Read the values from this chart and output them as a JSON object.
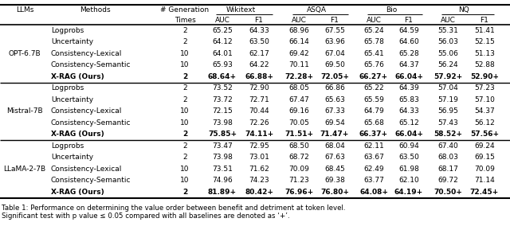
{
  "title": "Table 1: Performance on determining the value order between benefit and detriment at token level.",
  "subtitle": "Significant test with p value ≤ 0.05 compared with all baselines are denoted as ‘+’.",
  "groups": [
    {
      "llm": "OPT-6.7B",
      "rows": [
        {
          "method": "Logprobs",
          "times": "2",
          "vals": [
            "65.25",
            "64.33",
            "68.96",
            "67.55",
            "65.24",
            "64.59",
            "55.31",
            "51.41"
          ],
          "bold": false
        },
        {
          "method": "Uncertainty",
          "times": "2",
          "vals": [
            "64.12",
            "63.50",
            "66.14",
            "63.96",
            "65.78",
            "64.60",
            "56.03",
            "52.15"
          ],
          "bold": false
        },
        {
          "method": "Consistency-Lexical",
          "times": "10",
          "vals": [
            "64.01",
            "62.17",
            "69.42",
            "67.04",
            "65.41",
            "65.28",
            "55.06",
            "51.13"
          ],
          "bold": false
        },
        {
          "method": "Consistency-Semantic",
          "times": "10",
          "vals": [
            "65.93",
            "64.22",
            "70.11",
            "69.50",
            "65.76",
            "64.37",
            "56.24",
            "52.88"
          ],
          "bold": false
        },
        {
          "method": "X-RAG (Ours)",
          "times": "2",
          "vals": [
            "68.64+",
            "66.88+",
            "72.28+",
            "72.05+",
            "66.27+",
            "66.04+",
            "57.92+",
            "52.90+"
          ],
          "bold": true
        }
      ]
    },
    {
      "llm": "Mistral-7B",
      "rows": [
        {
          "method": "Logprobs",
          "times": "2",
          "vals": [
            "73.52",
            "72.90",
            "68.05",
            "66.86",
            "65.22",
            "64.39",
            "57.04",
            "57.23"
          ],
          "bold": false
        },
        {
          "method": "Uncertainty",
          "times": "2",
          "vals": [
            "73.72",
            "72.71",
            "67.47",
            "65.63",
            "65.59",
            "65.83",
            "57.19",
            "57.10"
          ],
          "bold": false
        },
        {
          "method": "Consistency-Lexical",
          "times": "10",
          "vals": [
            "72.15",
            "70.44",
            "69.16",
            "67.33",
            "64.79",
            "64.33",
            "56.95",
            "54.37"
          ],
          "bold": false
        },
        {
          "method": "Consistency-Semantic",
          "times": "10",
          "vals": [
            "73.98",
            "72.26",
            "70.05",
            "69.54",
            "65.68",
            "65.12",
            "57.43",
            "56.12"
          ],
          "bold": false
        },
        {
          "method": "X-RAG (Ours)",
          "times": "2",
          "vals": [
            "75.85+",
            "74.11+",
            "71.51+",
            "71.47+",
            "66.37+",
            "66.04+",
            "58.52+",
            "57.56+"
          ],
          "bold": true
        }
      ]
    },
    {
      "llm": "LLaMA-2-7B",
      "rows": [
        {
          "method": "Logprobs",
          "times": "2",
          "vals": [
            "73.47",
            "72.95",
            "68.50",
            "68.04",
            "62.11",
            "60.94",
            "67.40",
            "69.24"
          ],
          "bold": false
        },
        {
          "method": "Uncertainty",
          "times": "2",
          "vals": [
            "73.98",
            "73.01",
            "68.72",
            "67.63",
            "63.67",
            "63.50",
            "68.03",
            "69.15"
          ],
          "bold": false
        },
        {
          "method": "Consistency-Lexical",
          "times": "10",
          "vals": [
            "73.51",
            "71.62",
            "70.09",
            "68.45",
            "62.49",
            "61.98",
            "68.17",
            "70.09"
          ],
          "bold": false
        },
        {
          "method": "Consistency-Semantic",
          "times": "10",
          "vals": [
            "74.96",
            "74.23",
            "71.23",
            "69.38",
            "63.77",
            "62.10",
            "69.72",
            "71.14"
          ],
          "bold": false
        },
        {
          "method": "X-RAG (Ours)",
          "times": "2",
          "vals": [
            "81.89+",
            "80.42+",
            "76.96+",
            "76.80+",
            "64.08+",
            "64.19+",
            "70.50+",
            "72.45+"
          ],
          "bold": true
        }
      ]
    }
  ]
}
